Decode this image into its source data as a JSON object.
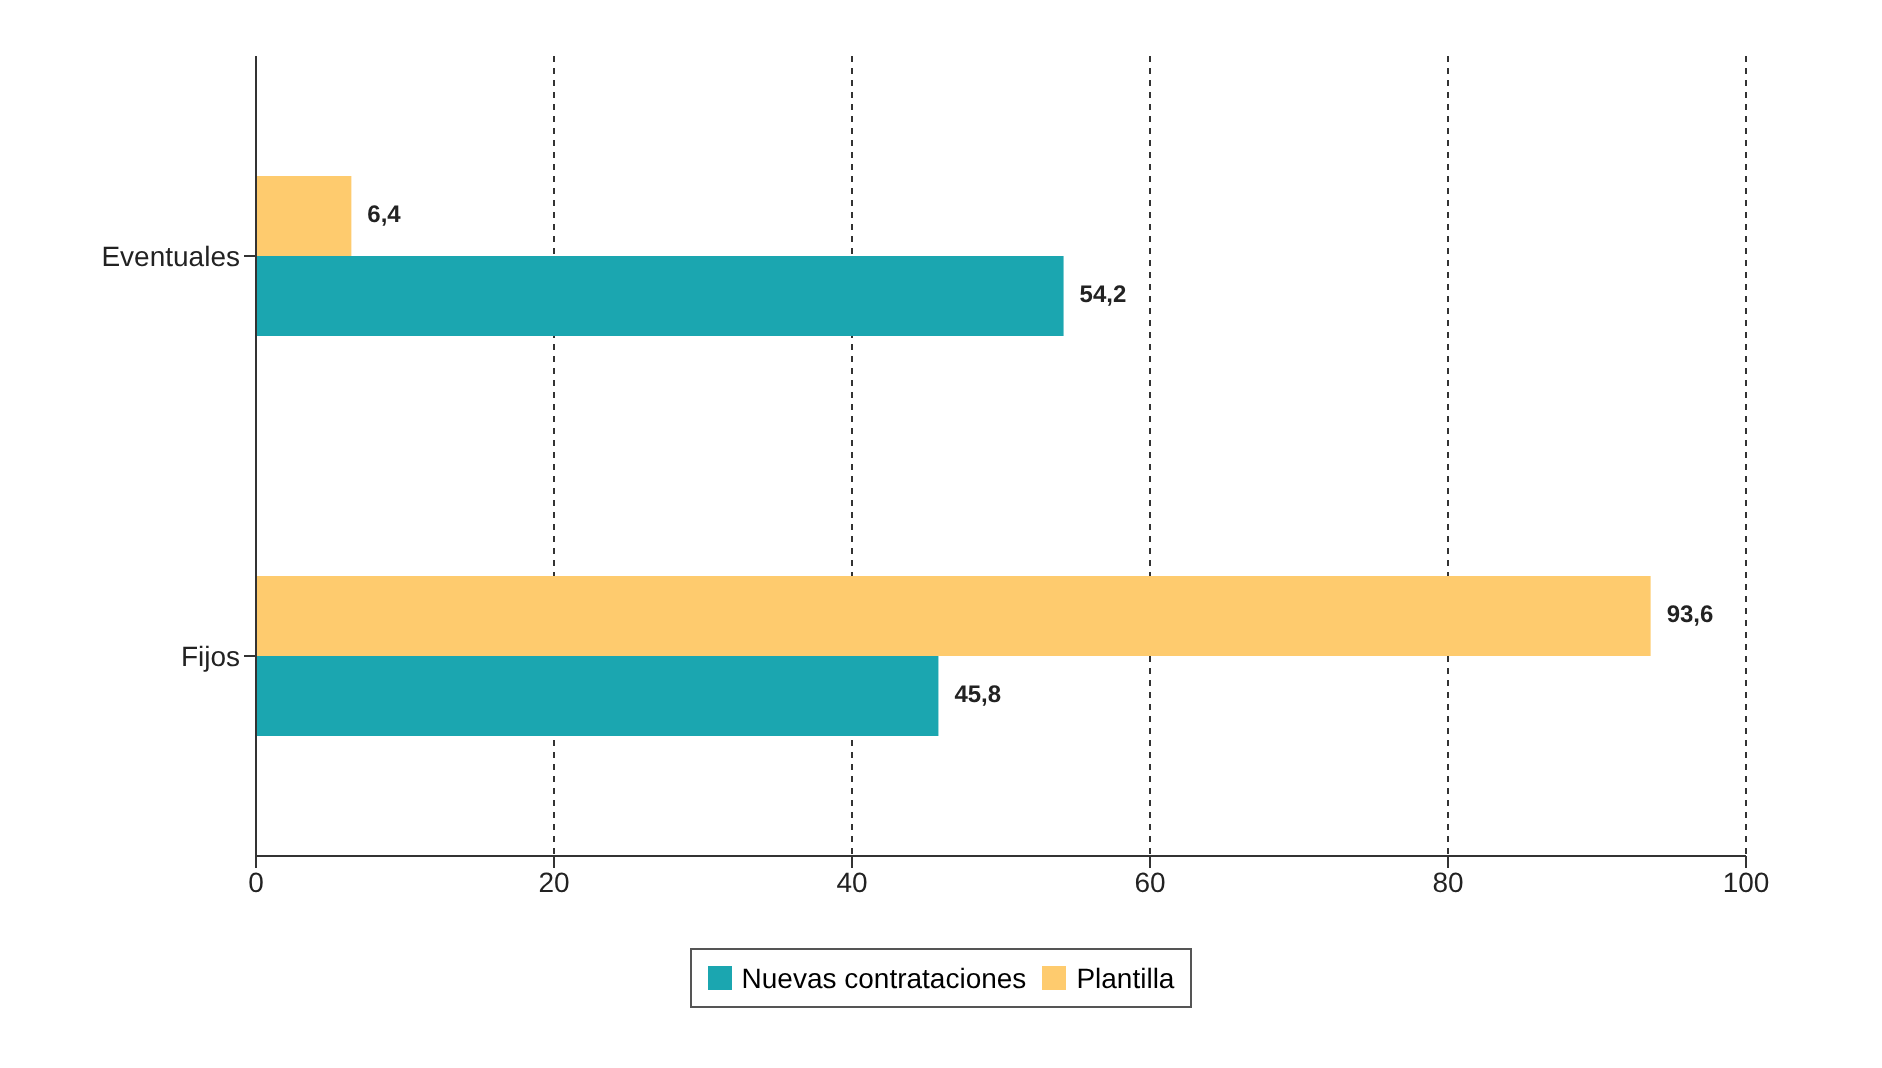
{
  "chart_data": {
    "type": "bar",
    "orientation": "horizontal",
    "categories": [
      "Eventuales",
      "Fijos"
    ],
    "series": [
      {
        "name": "Nuevas contrataciones",
        "color": "#1ba6b0",
        "values": [
          54.2,
          45.8
        ],
        "value_labels": [
          "54,2",
          "45,8"
        ]
      },
      {
        "name": "Plantilla",
        "color": "#fecb6e",
        "values": [
          6.4,
          93.6
        ],
        "value_labels": [
          "6,4",
          "93,6"
        ]
      }
    ],
    "xlim": [
      0,
      100
    ],
    "xticks": [
      0,
      20,
      40,
      60,
      80,
      100
    ],
    "grid": "x",
    "legend": "bottom"
  }
}
